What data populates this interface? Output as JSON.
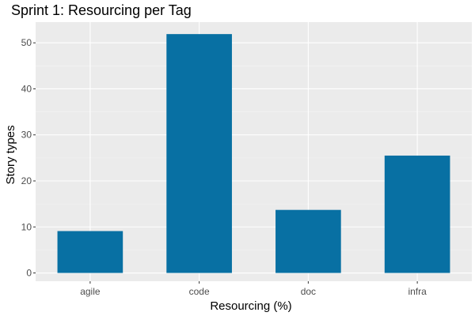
{
  "chart_data": {
    "type": "bar",
    "title": "Sprint 1: Resourcing per Tag",
    "xlabel": "Resourcing (%)",
    "ylabel": "Story types",
    "categories": [
      "agile",
      "code",
      "doc",
      "infra"
    ],
    "values": [
      9.1,
      51.9,
      13.7,
      25.5
    ],
    "ylim": [
      -1.8,
      54.5
    ],
    "yticks": [
      0,
      10,
      20,
      30,
      40,
      50
    ],
    "ytick_labels": [
      "0",
      "10",
      "20",
      "30",
      "40",
      "50"
    ],
    "grid": true,
    "legend": "none",
    "colors": {
      "bar": "#0870A3",
      "panel_background": "#EBEBEB",
      "grid_major": "#FFFFFF",
      "grid_minor": "#F5F5F5",
      "tick_text": "#4D4D4D",
      "tick_mark": "#333333"
    }
  }
}
